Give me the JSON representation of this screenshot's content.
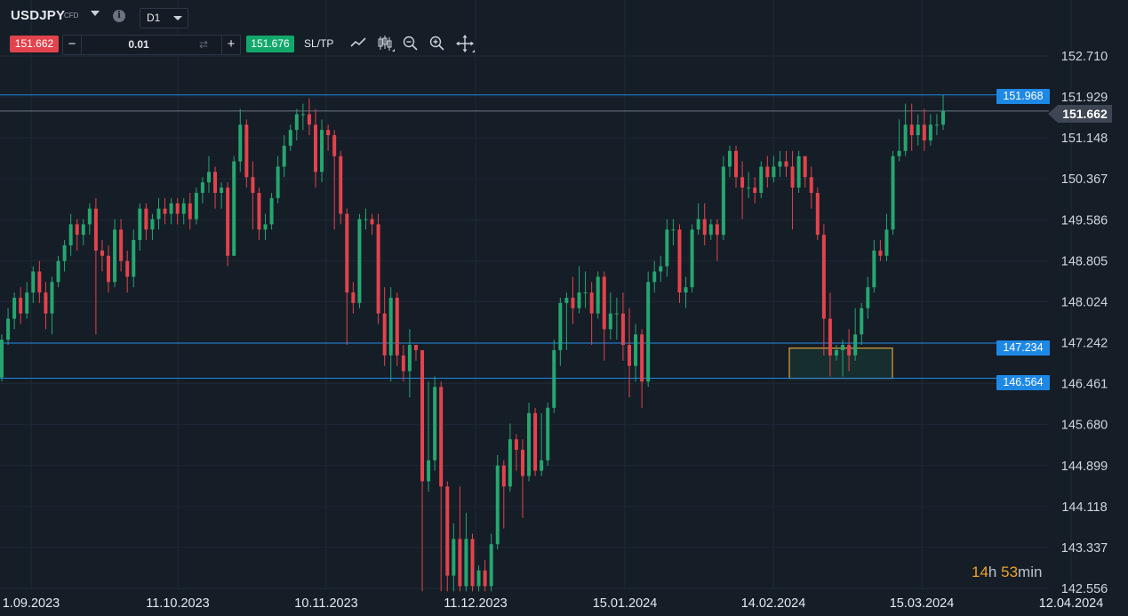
{
  "header": {
    "symbol": "USDJPY",
    "symbol_type": "CFD",
    "info_icon": "i",
    "timeframe": "D1"
  },
  "trade": {
    "sell_price": "151.662",
    "minus_label": "−",
    "quantity": "0.01",
    "plus_label": "+",
    "buy_price": "151.676",
    "sltp_label": "SL/TP"
  },
  "toolbar_icons": [
    "line-chart-icon",
    "candles-icon",
    "zoom-out-icon",
    "zoom-in-icon",
    "move-icon"
  ],
  "colors": {
    "bull": "#26a66f",
    "bear": "#e2434c",
    "hline": "#1e88e5",
    "zone_border": "#e0a23a"
  },
  "price_axis": [
    "152.710",
    "151.929",
    "151.148",
    "150.367",
    "149.586",
    "148.805",
    "148.024",
    "147.242",
    "146.461",
    "145.680",
    "144.899",
    "144.118",
    "143.337",
    "142.556"
  ],
  "date_axis": [
    "1.09.2023",
    "11.10.2023",
    "10.11.2023",
    "11.12.2023",
    "15.01.2024",
    "14.02.2024",
    "15.03.2024",
    "12.04.2024"
  ],
  "horizontal_lines": [
    {
      "label": "151.968",
      "price": 151.968
    },
    {
      "label": "147.234",
      "price": 147.234
    },
    {
      "label": "146.564",
      "price": 146.564
    }
  ],
  "current_price": {
    "label": "151.662",
    "price": 151.662
  },
  "countdown": {
    "hours": "14",
    "h": "h",
    "minutes": "53",
    "m": "min"
  },
  "chart_data": {
    "type": "candlestick",
    "symbol": "USDJPY",
    "timeframe": "D1",
    "ylim": [
      142.556,
      152.71
    ],
    "highlight_zone": {
      "price_top": 147.14,
      "price_bottom": 146.564
    },
    "candles": [
      [
        146.58,
        147.3,
        146.5,
        147.4
      ],
      [
        147.3,
        147.7,
        147.2,
        147.9
      ],
      [
        147.7,
        148.1,
        147.5,
        148.2
      ],
      [
        148.1,
        147.8,
        147.6,
        148.3
      ],
      [
        147.8,
        148.2,
        147.7,
        148.4
      ],
      [
        148.2,
        148.6,
        148.0,
        148.7
      ],
      [
        148.6,
        148.2,
        148.0,
        148.8
      ],
      [
        148.2,
        147.8,
        147.5,
        148.4
      ],
      [
        147.8,
        148.4,
        147.4,
        148.5
      ],
      [
        148.4,
        148.8,
        148.3,
        148.9
      ],
      [
        148.8,
        149.1,
        148.6,
        149.2
      ],
      [
        149.1,
        149.5,
        148.9,
        149.7
      ],
      [
        149.5,
        149.3,
        149.0,
        149.6
      ],
      [
        149.3,
        149.5,
        149.1,
        149.6
      ],
      [
        149.5,
        149.8,
        149.3,
        149.9
      ],
      [
        149.8,
        149.0,
        147.4,
        150.0
      ],
      [
        149.0,
        148.9,
        148.6,
        149.2
      ],
      [
        148.9,
        148.4,
        148.2,
        149.1
      ],
      [
        148.4,
        149.4,
        148.3,
        149.6
      ],
      [
        149.4,
        148.8,
        148.6,
        149.6
      ],
      [
        148.8,
        148.5,
        148.2,
        149.0
      ],
      [
        148.5,
        149.2,
        148.3,
        149.4
      ],
      [
        149.2,
        149.8,
        149.0,
        149.9
      ],
      [
        149.8,
        149.4,
        149.2,
        149.9
      ],
      [
        149.4,
        149.6,
        149.2,
        149.7
      ],
      [
        149.6,
        149.8,
        149.4,
        150.0
      ],
      [
        149.8,
        149.7,
        149.5,
        150.0
      ],
      [
        149.7,
        149.9,
        149.5,
        150.0
      ],
      [
        149.9,
        149.7,
        149.5,
        150.0
      ],
      [
        149.7,
        149.9,
        149.5,
        150.0
      ],
      [
        149.9,
        149.6,
        149.4,
        150.1
      ],
      [
        149.6,
        150.1,
        149.5,
        150.2
      ],
      [
        150.1,
        150.3,
        149.9,
        150.4
      ],
      [
        150.3,
        150.5,
        150.1,
        150.8
      ],
      [
        150.5,
        150.1,
        149.8,
        150.6
      ],
      [
        150.1,
        150.2,
        149.8,
        150.3
      ],
      [
        150.2,
        148.9,
        148.7,
        150.3
      ],
      [
        148.9,
        150.7,
        148.9,
        150.8
      ],
      [
        150.7,
        151.4,
        150.5,
        151.7
      ],
      [
        151.4,
        150.4,
        150.2,
        151.5
      ],
      [
        150.4,
        150.1,
        149.4,
        150.7
      ],
      [
        150.1,
        149.4,
        149.2,
        150.2
      ],
      [
        149.4,
        149.5,
        149.2,
        149.7
      ],
      [
        149.5,
        150.0,
        149.4,
        150.1
      ],
      [
        150.0,
        150.6,
        149.9,
        150.8
      ],
      [
        150.6,
        151.0,
        150.4,
        151.2
      ],
      [
        151.0,
        151.3,
        150.9,
        151.4
      ],
      [
        151.3,
        151.6,
        151.1,
        151.7
      ],
      [
        151.6,
        151.6,
        151.3,
        151.8
      ],
      [
        151.6,
        151.4,
        151.2,
        151.9
      ],
      [
        151.4,
        150.5,
        150.2,
        151.7
      ],
      [
        150.5,
        151.3,
        150.3,
        151.5
      ],
      [
        151.3,
        151.2,
        150.9,
        151.4
      ],
      [
        151.2,
        150.8,
        149.4,
        151.3
      ],
      [
        150.8,
        149.7,
        149.5,
        150.9
      ],
      [
        149.7,
        148.2,
        147.2,
        149.8
      ],
      [
        148.2,
        148.0,
        147.8,
        148.4
      ],
      [
        148.0,
        149.6,
        147.9,
        149.7
      ],
      [
        149.6,
        149.6,
        149.4,
        149.8
      ],
      [
        149.6,
        149.5,
        149.3,
        149.7
      ],
      [
        149.5,
        147.8,
        147.6,
        149.7
      ],
      [
        147.8,
        147.0,
        146.8,
        148.3
      ],
      [
        147.0,
        148.1,
        146.5,
        148.3
      ],
      [
        148.1,
        147.0,
        146.8,
        148.2
      ],
      [
        147.0,
        146.7,
        146.5,
        147.2
      ],
      [
        146.7,
        147.2,
        146.2,
        147.5
      ],
      [
        147.2,
        147.1,
        146.9,
        147.2
      ],
      [
        147.1,
        144.6,
        142.5,
        147.1
      ],
      [
        144.6,
        145.0,
        144.4,
        146.5
      ],
      [
        145.0,
        146.4,
        144.8,
        146.6
      ],
      [
        146.4,
        144.5,
        142.5,
        146.5
      ],
      [
        144.5,
        142.8,
        142.5,
        144.6
      ],
      [
        142.8,
        143.5,
        142.5,
        143.8
      ],
      [
        143.5,
        142.6,
        142.5,
        144.5
      ],
      [
        142.6,
        143.5,
        142.5,
        144.0
      ],
      [
        143.5,
        142.6,
        142.5,
        143.6
      ],
      [
        142.6,
        142.9,
        142.5,
        143.0
      ],
      [
        142.9,
        142.6,
        142.5,
        143.1
      ],
      [
        142.6,
        143.4,
        142.5,
        143.6
      ],
      [
        143.4,
        144.9,
        143.3,
        145.1
      ],
      [
        144.9,
        144.5,
        143.7,
        145.0
      ],
      [
        144.5,
        145.4,
        144.4,
        145.7
      ],
      [
        145.4,
        145.2,
        144.8,
        145.5
      ],
      [
        145.2,
        144.7,
        143.9,
        145.4
      ],
      [
        144.7,
        145.9,
        144.6,
        146.1
      ],
      [
        145.9,
        144.8,
        144.7,
        146.0
      ],
      [
        144.8,
        145.0,
        144.7,
        145.9
      ],
      [
        145.0,
        146.0,
        144.9,
        146.1
      ],
      [
        146.0,
        147.1,
        145.9,
        147.3
      ],
      [
        147.1,
        148.0,
        146.8,
        148.1
      ],
      [
        148.0,
        148.1,
        147.1,
        148.2
      ],
      [
        148.1,
        147.9,
        147.6,
        148.5
      ],
      [
        147.9,
        148.2,
        147.8,
        148.7
      ],
      [
        148.2,
        148.2,
        147.9,
        148.6
      ],
      [
        148.2,
        147.8,
        147.2,
        148.4
      ],
      [
        147.8,
        148.5,
        147.7,
        148.6
      ],
      [
        148.5,
        147.5,
        146.9,
        148.6
      ],
      [
        147.5,
        147.8,
        147.3,
        148.2
      ],
      [
        147.8,
        147.8,
        147.3,
        148.1
      ],
      [
        147.8,
        147.2,
        146.9,
        148.2
      ],
      [
        147.2,
        146.8,
        146.2,
        147.9
      ],
      [
        146.8,
        147.4,
        146.5,
        147.6
      ],
      [
        147.4,
        146.5,
        146.0,
        147.5
      ],
      [
        146.5,
        148.4,
        146.4,
        148.6
      ],
      [
        148.4,
        148.6,
        148.2,
        148.8
      ],
      [
        148.6,
        148.7,
        148.4,
        148.9
      ],
      [
        148.7,
        149.4,
        148.5,
        149.6
      ],
      [
        149.4,
        149.4,
        149.1,
        149.6
      ],
      [
        149.4,
        148.2,
        148.0,
        149.5
      ],
      [
        148.2,
        148.3,
        147.9,
        148.5
      ],
      [
        148.3,
        149.4,
        148.2,
        149.5
      ],
      [
        149.4,
        149.6,
        149.3,
        149.9
      ],
      [
        149.6,
        149.3,
        149.1,
        149.9
      ],
      [
        149.3,
        149.5,
        149.2,
        149.6
      ],
      [
        149.5,
        149.3,
        148.8,
        149.6
      ],
      [
        149.3,
        150.6,
        149.2,
        150.8
      ],
      [
        150.6,
        150.9,
        150.4,
        151.0
      ],
      [
        150.9,
        150.4,
        150.2,
        151.0
      ],
      [
        150.4,
        150.2,
        149.6,
        150.7
      ],
      [
        150.2,
        150.2,
        150.0,
        150.5
      ],
      [
        150.2,
        150.1,
        149.9,
        150.4
      ],
      [
        150.1,
        150.6,
        150.0,
        150.7
      ],
      [
        150.6,
        150.4,
        150.2,
        150.8
      ],
      [
        150.4,
        150.6,
        150.3,
        150.8
      ],
      [
        150.6,
        150.7,
        150.4,
        150.9
      ],
      [
        150.7,
        150.6,
        150.4,
        150.9
      ],
      [
        150.6,
        150.2,
        149.4,
        150.9
      ],
      [
        150.2,
        150.8,
        150.1,
        150.9
      ],
      [
        150.8,
        150.4,
        150.2,
        150.8
      ],
      [
        150.4,
        150.1,
        149.8,
        150.6
      ],
      [
        150.1,
        149.3,
        149.2,
        150.2
      ],
      [
        149.3,
        147.7,
        147.0,
        149.5
      ],
      [
        147.7,
        147.0,
        146.6,
        148.2
      ],
      [
        147.0,
        147.1,
        146.9,
        147.2
      ],
      [
        147.1,
        147.2,
        146.6,
        147.3
      ],
      [
        147.2,
        147.0,
        146.7,
        147.5
      ],
      [
        147.0,
        147.4,
        146.9,
        147.9
      ],
      [
        147.4,
        147.9,
        147.2,
        148.0
      ],
      [
        147.9,
        148.3,
        147.7,
        148.5
      ],
      [
        148.3,
        149.0,
        148.2,
        149.2
      ],
      [
        149.0,
        148.9,
        148.8,
        149.2
      ],
      [
        148.9,
        149.4,
        148.8,
        149.7
      ],
      [
        149.4,
        150.8,
        149.3,
        150.9
      ],
      [
        150.8,
        150.9,
        150.7,
        151.5
      ],
      [
        150.9,
        151.4,
        150.8,
        151.8
      ],
      [
        151.4,
        151.2,
        150.9,
        151.8
      ],
      [
        151.2,
        151.4,
        151.0,
        151.6
      ],
      [
        151.4,
        151.1,
        150.9,
        151.7
      ],
      [
        151.1,
        151.4,
        151.0,
        151.6
      ],
      [
        151.4,
        151.4,
        151.2,
        151.6
      ],
      [
        151.4,
        151.662,
        151.3,
        151.968
      ]
    ]
  }
}
